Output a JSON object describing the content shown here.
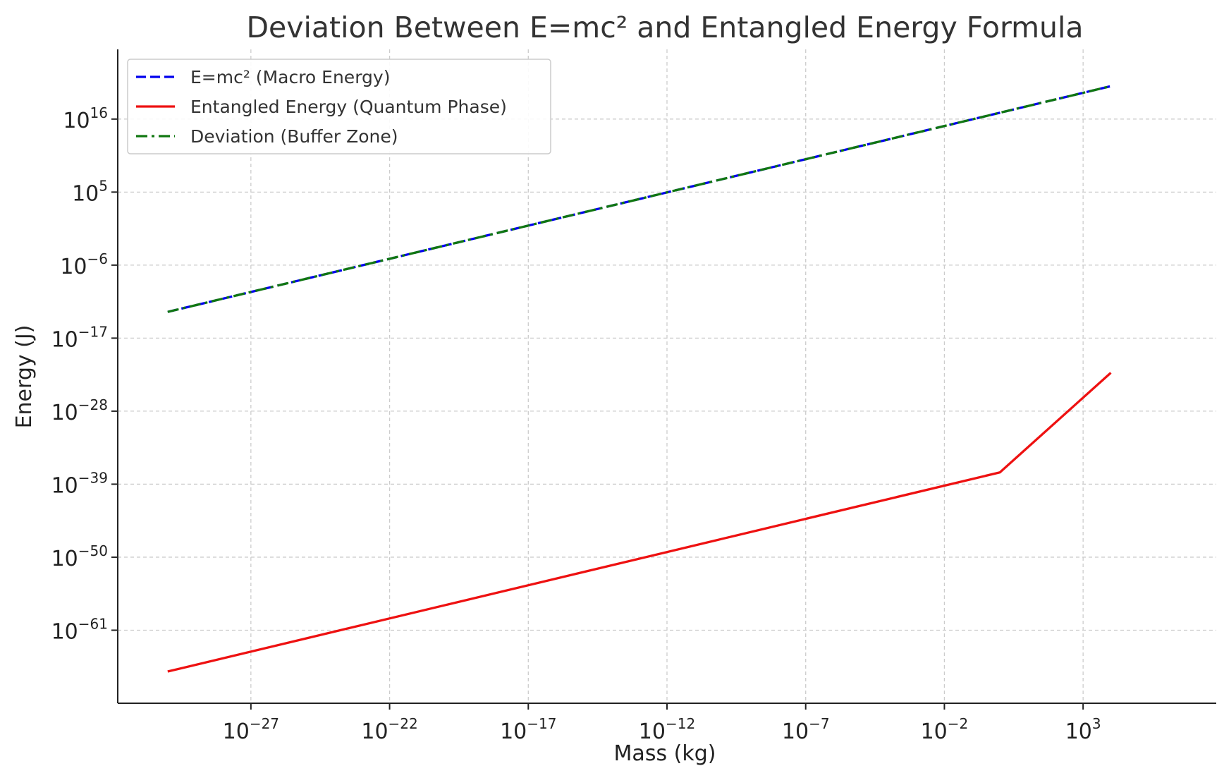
{
  "chart_data": {
    "type": "line",
    "title": "Deviation Between E=mc² and Entangled Energy Formula",
    "xlabel": "Mass (kg)",
    "ylabel": "Energy (J)",
    "xscale": "log",
    "yscale": "log",
    "grid": true,
    "legend_position": "top-left",
    "x_ticks": [
      {
        "base": "10",
        "exp": "−27",
        "value_log10": -27
      },
      {
        "base": "10",
        "exp": "−22",
        "value_log10": -22
      },
      {
        "base": "10",
        "exp": "−17",
        "value_log10": -17
      },
      {
        "base": "10",
        "exp": "−12",
        "value_log10": -12
      },
      {
        "base": "10",
        "exp": "−7",
        "value_log10": -7
      },
      {
        "base": "10",
        "exp": "−2",
        "value_log10": -2
      },
      {
        "base": "10",
        "exp": "3",
        "value_log10": 3
      }
    ],
    "y_ticks": [
      {
        "base": "10",
        "exp": "16",
        "value_log10": 16
      },
      {
        "base": "10",
        "exp": "5",
        "value_log10": 5
      },
      {
        "base": "10",
        "exp": "−6",
        "value_log10": -6
      },
      {
        "base": "10",
        "exp": "−17",
        "value_log10": -17
      },
      {
        "base": "10",
        "exp": "−28",
        "value_log10": -28
      },
      {
        "base": "10",
        "exp": "−39",
        "value_log10": -39
      },
      {
        "base": "10",
        "exp": "−50",
        "value_log10": -50
      },
      {
        "base": "10",
        "exp": "−61",
        "value_log10": -61
      }
    ],
    "x_range_log10": [
      -31.8,
      7.8
    ],
    "y_range_log10": [
      -72,
      26.5
    ],
    "series": [
      {
        "name": "E=mc² (Macro Energy)",
        "color": "#0000ee",
        "style": "dashed",
        "x": [
          1e-30,
          1e-25,
          1e-20,
          1e-15,
          1e-10,
          1e-05,
          1,
          10000.0
        ],
        "y": [
          9e-14,
          9e-09,
          0.0009,
          90,
          9000000.0,
          900000000000.0,
          9e+16,
          9e+20
        ]
      },
      {
        "name": "Entangled Energy (Quantum Phase)",
        "color": "#ee1111",
        "style": "solid",
        "x": [
          1e-30,
          1e-25,
          1e-20,
          1e-15,
          1e-10,
          1e-05,
          1,
          10000.0
        ],
        "y": [
          6e-68,
          6e-63,
          6e-58,
          6e-53,
          6e-48,
          6e-43,
          6e-38,
          6e-23
        ]
      },
      {
        "name": "Deviation (Buffer Zone)",
        "color": "#117711",
        "style": "dashdot",
        "x": [
          1e-30,
          1e-25,
          1e-20,
          1e-15,
          1e-10,
          1e-05,
          1,
          10000.0
        ],
        "y": [
          9e-14,
          9e-09,
          0.0009,
          90,
          9000000.0,
          900000000000.0,
          9e+16,
          9e+20
        ]
      }
    ]
  }
}
